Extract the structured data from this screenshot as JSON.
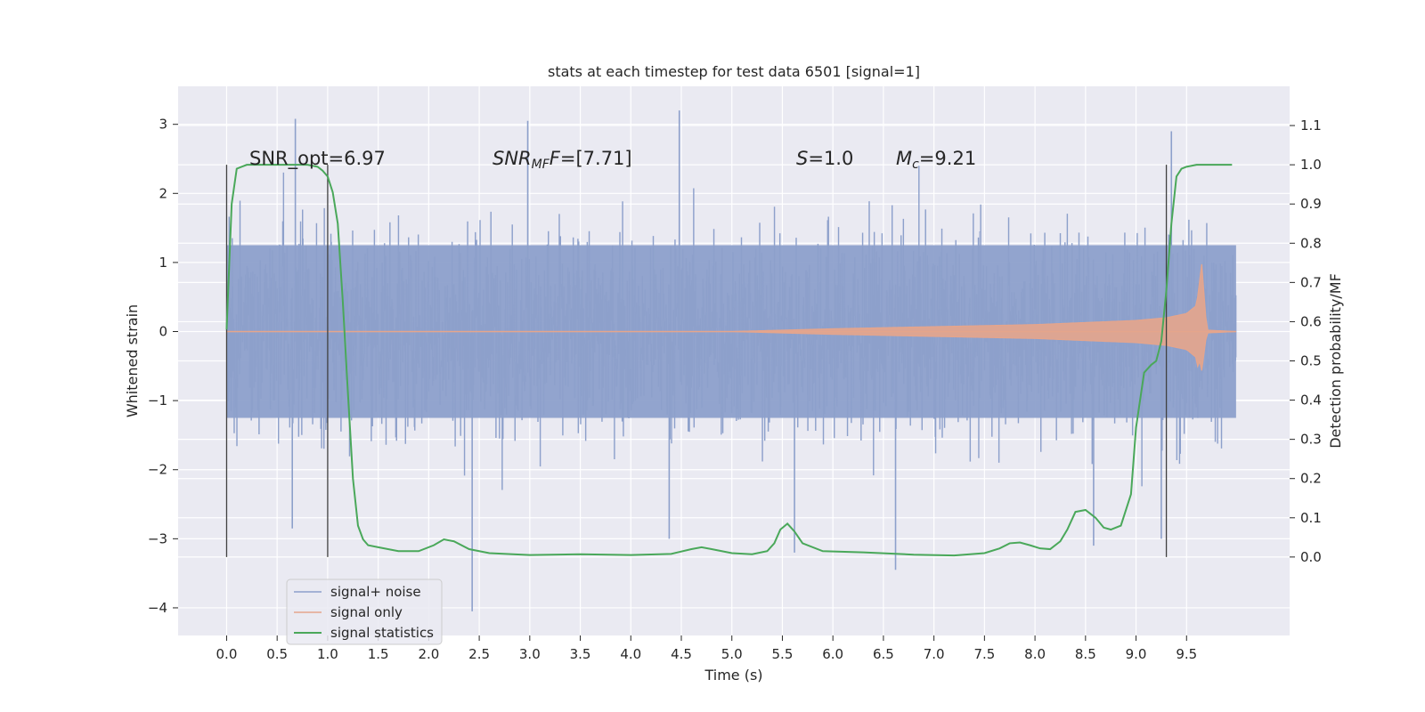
{
  "chart_data": {
    "type": "line",
    "title": "stats at each timestep for test data 6501 [signal=1]",
    "xlabel": "Time (s)",
    "ylabel": "Whitened strain",
    "y2label": "Detection probability/MF",
    "xlim": [
      -0.48,
      10.52
    ],
    "ylim": [
      -4.4,
      3.55
    ],
    "y2lim": [
      -0.2,
      1.2
    ],
    "x_ticks": [
      "0.0",
      "0.5",
      "1.0",
      "1.5",
      "2.0",
      "2.5",
      "3.0",
      "3.5",
      "4.0",
      "4.5",
      "5.0",
      "5.5",
      "6.0",
      "6.5",
      "7.0",
      "7.5",
      "8.0",
      "8.5",
      "9.0",
      "9.5"
    ],
    "y_ticks": [
      "3",
      "2",
      "1",
      "0",
      "−1",
      "−2",
      "−3",
      "−4"
    ],
    "y2_ticks": [
      "1.1",
      "1.0",
      "0.9",
      "0.8",
      "0.7",
      "0.6",
      "0.5",
      "0.4",
      "0.3",
      "0.2",
      "0.1",
      "0.0"
    ],
    "grid": true,
    "legend_position": "lower-left",
    "annotations": {
      "snr_opt": "SNR_opt=6.97",
      "snr_mf_main": "SNR",
      "snr_mf_sub": "MF",
      "snr_mf_val": "=[7.71]",
      "s_main": "S",
      "s_val": "=1.0",
      "mc_main": "M",
      "mc_sub": "c",
      "mc_val": "=9.21"
    },
    "vlines": [
      0.0,
      1.0,
      9.3
    ],
    "colors": {
      "noise": "#8da0cb",
      "signal": "#e5a58c",
      "stats": "#4aa85a",
      "background": "#eaeaf2",
      "vline": "#404040"
    },
    "series": [
      {
        "name": "signal+ noise",
        "kind": "noise band",
        "x_range": [
          0.0,
          9.99
        ],
        "typical_range": [
          -1.5,
          1.5
        ],
        "peaks": [
          {
            "x": 0.68,
            "y": 3.08
          },
          {
            "x": 2.98,
            "y": 3.05
          },
          {
            "x": 4.48,
            "y": 3.2
          },
          {
            "x": 9.35,
            "y": 2.9
          },
          {
            "x": 2.43,
            "y": -4.05
          },
          {
            "x": 6.62,
            "y": -3.45
          },
          {
            "x": 5.62,
            "y": -3.2
          },
          {
            "x": 8.58,
            "y": -3.1
          },
          {
            "x": 0.65,
            "y": -2.85
          },
          {
            "x": 4.38,
            "y": -3.0
          },
          {
            "x": 9.25,
            "y": -3.0
          }
        ]
      },
      {
        "name": "signal only",
        "kind": "chirp envelope",
        "x": [
          0.0,
          5.0,
          6.0,
          7.0,
          8.0,
          8.5,
          9.0,
          9.3,
          9.5,
          9.6,
          9.65,
          9.7,
          9.99
        ],
        "amplitude": [
          0.0,
          0.0,
          0.04,
          0.07,
          0.1,
          0.13,
          0.16,
          0.2,
          0.26,
          0.38,
          0.98,
          0.02,
          0.0
        ]
      },
      {
        "name": "signal statistics",
        "axis": "right",
        "x": [
          0.0,
          0.05,
          0.1,
          0.15,
          0.2,
          0.3,
          0.5,
          0.7,
          0.8,
          0.9,
          0.95,
          1.0,
          1.05,
          1.1,
          1.15,
          1.2,
          1.25,
          1.3,
          1.35,
          1.4,
          1.5,
          1.7,
          1.9,
          2.05,
          2.15,
          2.25,
          2.4,
          2.6,
          3.0,
          3.5,
          4.0,
          4.4,
          4.6,
          4.7,
          4.8,
          5.0,
          5.2,
          5.35,
          5.42,
          5.48,
          5.55,
          5.62,
          5.7,
          5.9,
          6.3,
          6.8,
          7.2,
          7.5,
          7.65,
          7.75,
          7.85,
          7.95,
          8.05,
          8.15,
          8.25,
          8.32,
          8.4,
          8.5,
          8.6,
          8.68,
          8.75,
          8.85,
          8.95,
          9.0,
          9.08,
          9.15,
          9.2,
          9.25,
          9.3,
          9.35,
          9.4,
          9.45,
          9.5,
          9.6,
          9.8,
          9.95
        ],
        "values": [
          0.58,
          0.9,
          0.99,
          0.995,
          1.0,
          1.0,
          1.0,
          1.0,
          1.0,
          0.995,
          0.985,
          0.97,
          0.93,
          0.85,
          0.65,
          0.42,
          0.2,
          0.08,
          0.045,
          0.03,
          0.025,
          0.015,
          0.015,
          0.03,
          0.045,
          0.04,
          0.02,
          0.01,
          0.005,
          0.007,
          0.005,
          0.008,
          0.02,
          0.025,
          0.02,
          0.01,
          0.007,
          0.015,
          0.035,
          0.07,
          0.085,
          0.065,
          0.035,
          0.015,
          0.012,
          0.006,
          0.004,
          0.01,
          0.022,
          0.035,
          0.037,
          0.03,
          0.022,
          0.02,
          0.04,
          0.07,
          0.115,
          0.12,
          0.1,
          0.075,
          0.07,
          0.08,
          0.16,
          0.33,
          0.47,
          0.49,
          0.5,
          0.55,
          0.68,
          0.85,
          0.97,
          0.99,
          0.995,
          1.0,
          1.0,
          1.0
        ]
      }
    ]
  }
}
